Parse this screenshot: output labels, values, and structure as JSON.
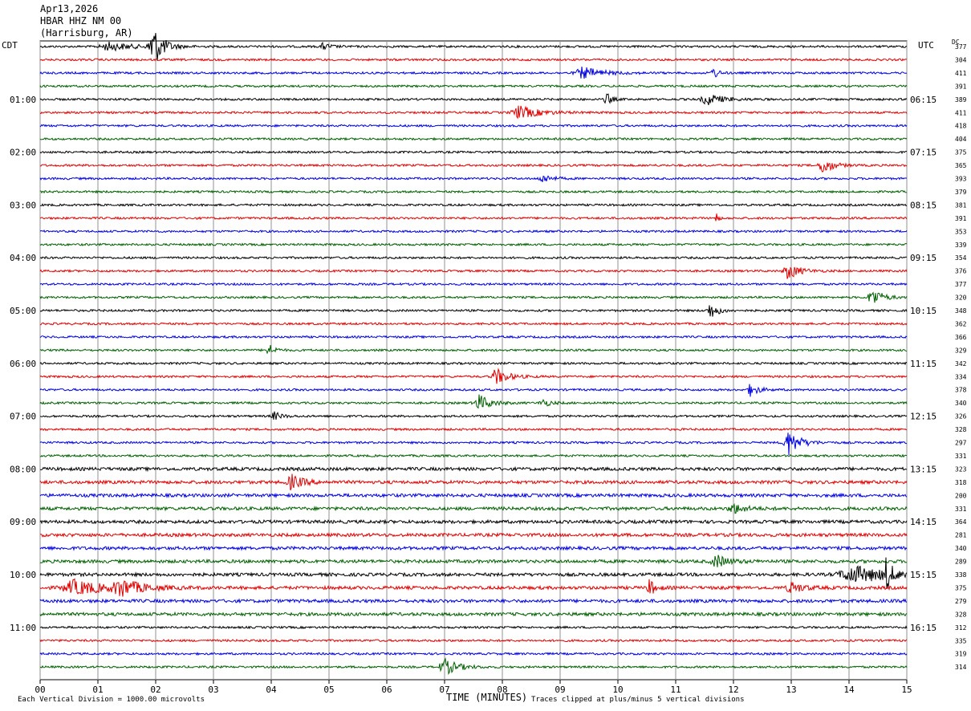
{
  "header": {
    "date": "Apr13,2026",
    "station": "HBAR HHZ NM 00",
    "location": "(Harrisburg, AR)"
  },
  "left_timezone": "CDT",
  "right_timezone": "UTC",
  "dc_label": "DC",
  "footer": {
    "scale_note": "Each Vertical Division = 1000.00 microvolts",
    "clip_note": "Traces clipped at plus/minus 5 vertical divisions"
  },
  "chart_data": {
    "type": "line",
    "title": "HBAR HHZ NM 00",
    "xlabel": "TIME (MINUTES)",
    "xlim": [
      0,
      15
    ],
    "x_ticks": [
      "00",
      "01",
      "02",
      "03",
      "04",
      "05",
      "06",
      "07",
      "08",
      "09",
      "10",
      "11",
      "12",
      "13",
      "14",
      "15"
    ],
    "trace_colors": [
      "#000000",
      "#e00000",
      "#0000e0",
      "#006000"
    ],
    "left_labels": [
      {
        "row": 4,
        "text": "01:00"
      },
      {
        "row": 8,
        "text": "02:00"
      },
      {
        "row": 12,
        "text": "03:00"
      },
      {
        "row": 16,
        "text": "04:00"
      },
      {
        "row": 20,
        "text": "05:00"
      },
      {
        "row": 24,
        "text": "06:00"
      },
      {
        "row": 28,
        "text": "07:00"
      },
      {
        "row": 32,
        "text": "08:00"
      },
      {
        "row": 36,
        "text": "09:00"
      },
      {
        "row": 40,
        "text": "10:00"
      },
      {
        "row": 44,
        "text": "11:00"
      }
    ],
    "right_labels": [
      {
        "row": 4,
        "text": "06:15"
      },
      {
        "row": 8,
        "text": "07:15"
      },
      {
        "row": 12,
        "text": "08:15"
      },
      {
        "row": 16,
        "text": "09:15"
      },
      {
        "row": 20,
        "text": "10:15"
      },
      {
        "row": 24,
        "text": "11:15"
      },
      {
        "row": 28,
        "text": "12:15"
      },
      {
        "row": 32,
        "text": "13:15"
      },
      {
        "row": 36,
        "text": "14:15"
      },
      {
        "row": 40,
        "text": "15:15"
      },
      {
        "row": 44,
        "text": "16:15"
      }
    ],
    "dc_values": [
      "377",
      "304",
      "411",
      "391",
      "389",
      "411",
      "418",
      "404",
      "375",
      "365",
      "393",
      "379",
      "381",
      "391",
      "353",
      "339",
      "354",
      "376",
      "377",
      "320",
      "348",
      "362",
      "366",
      "329",
      "342",
      "334",
      "378",
      "340",
      "326",
      "328",
      "297",
      "331",
      "323",
      "318",
      "200",
      "331",
      "364",
      "281",
      "340",
      "289",
      "338",
      "375",
      "279",
      "328",
      "312",
      "335",
      "319",
      "314"
    ],
    "events": [
      {
        "row": 0,
        "minute": 1.2,
        "amp": 5,
        "width": 0.6
      },
      {
        "row": 0,
        "minute": 1.95,
        "amp": 28,
        "width": 0.25
      },
      {
        "row": 0,
        "minute": 4.9,
        "amp": 4,
        "width": 0.2
      },
      {
        "row": 2,
        "minute": 9.4,
        "amp": 7,
        "width": 0.5
      },
      {
        "row": 2,
        "minute": 11.65,
        "amp": 8,
        "width": 0.12
      },
      {
        "row": 4,
        "minute": 9.8,
        "amp": 9,
        "width": 0.12
      },
      {
        "row": 4,
        "minute": 11.55,
        "amp": 7,
        "width": 0.4
      },
      {
        "row": 5,
        "minute": 8.3,
        "amp": 8,
        "width": 0.5
      },
      {
        "row": 9,
        "minute": 13.55,
        "amp": 11,
        "width": 0.25
      },
      {
        "row": 10,
        "minute": 8.7,
        "amp": 5,
        "width": 0.25
      },
      {
        "row": 13,
        "minute": 11.7,
        "amp": 10,
        "width": 0.05
      },
      {
        "row": 17,
        "minute": 12.95,
        "amp": 10,
        "width": 0.3
      },
      {
        "row": 19,
        "minute": 14.4,
        "amp": 12,
        "width": 0.25
      },
      {
        "row": 20,
        "minute": 11.6,
        "amp": 10,
        "width": 0.2
      },
      {
        "row": 23,
        "minute": 3.95,
        "amp": 8,
        "width": 0.15
      },
      {
        "row": 25,
        "minute": 7.9,
        "amp": 10,
        "width": 0.3
      },
      {
        "row": 26,
        "minute": 12.3,
        "amp": 8,
        "width": 0.2
      },
      {
        "row": 27,
        "minute": 7.6,
        "amp": 10,
        "width": 0.3
      },
      {
        "row": 27,
        "minute": 8.7,
        "amp": 5,
        "width": 0.2
      },
      {
        "row": 28,
        "minute": 4.05,
        "amp": 5,
        "width": 0.2
      },
      {
        "row": 30,
        "minute": 12.95,
        "amp": 16,
        "width": 0.3
      },
      {
        "row": 33,
        "minute": 4.35,
        "amp": 9,
        "width": 0.3
      },
      {
        "row": 35,
        "minute": 12.0,
        "amp": 6,
        "width": 0.3
      },
      {
        "row": 39,
        "minute": 11.7,
        "amp": 8,
        "width": 0.3
      },
      {
        "row": 40,
        "minute": 14.1,
        "amp": 10,
        "width": 1.0
      },
      {
        "row": 40,
        "minute": 14.65,
        "amp": 20,
        "width": 0.12
      },
      {
        "row": 41,
        "minute": 0.6,
        "amp": 9,
        "width": 0.8
      },
      {
        "row": 41,
        "minute": 1.4,
        "amp": 10,
        "width": 0.5
      },
      {
        "row": 41,
        "minute": 10.55,
        "amp": 10,
        "width": 0.15
      },
      {
        "row": 41,
        "minute": 13.0,
        "amp": 7,
        "width": 0.3
      },
      {
        "row": 47,
        "minute": 7.0,
        "amp": 10,
        "width": 0.35
      }
    ]
  }
}
